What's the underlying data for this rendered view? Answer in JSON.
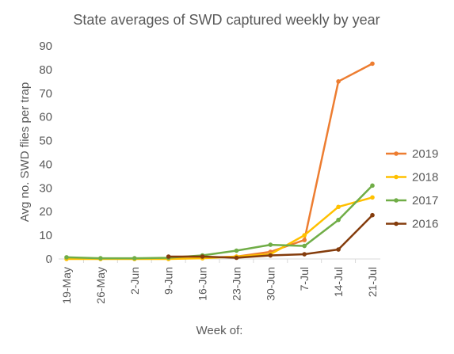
{
  "chart_data": {
    "type": "line",
    "title": "State averages of SWD captured weekly by year",
    "xlabel": "Week of:",
    "ylabel": "Avg no. SWD flies per trap",
    "categories": [
      "19-May",
      "26-May",
      "2-Jun",
      "9-Jun",
      "16-Jun",
      "23-Jun",
      "30-Jun",
      "7-Jul",
      "14-Jul",
      "21-Jul"
    ],
    "yticks": [
      0,
      10,
      20,
      30,
      40,
      50,
      60,
      70,
      80,
      90
    ],
    "ylim": [
      0,
      90
    ],
    "grid": false,
    "legend_position": "right",
    "series": [
      {
        "name": "2019",
        "color": "#ED7D31",
        "values": [
          null,
          null,
          null,
          null,
          0.5,
          1,
          3,
          8,
          75,
          82.5
        ]
      },
      {
        "name": "2018",
        "color": "#FFC000",
        "values": [
          0,
          0,
          0,
          0,
          0.3,
          1,
          2,
          10,
          22,
          26
        ]
      },
      {
        "name": "2017",
        "color": "#70AD47",
        "values": [
          0.7,
          0.3,
          0.3,
          0.5,
          1.5,
          3.5,
          6,
          5.5,
          16.5,
          31
        ]
      },
      {
        "name": "2016",
        "color": "#843C0C",
        "values": [
          null,
          null,
          null,
          1,
          1,
          0.5,
          1.5,
          2,
          4,
          18.5
        ]
      }
    ]
  }
}
